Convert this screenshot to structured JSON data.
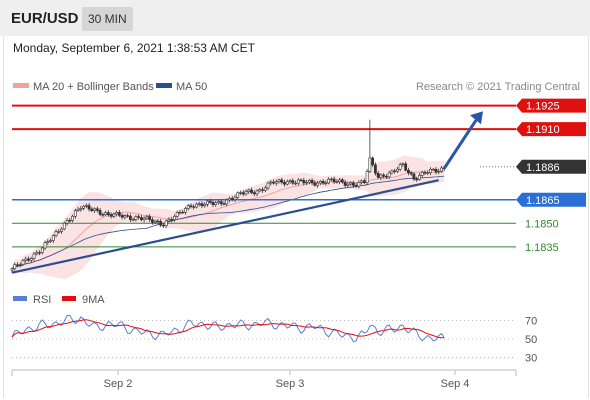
{
  "header": {
    "symbol": "EUR/USD",
    "timeframe": "30 MIN"
  },
  "datetime": "Monday, September 6, 2021 1:38:53 AM CET",
  "legend": {
    "ma20_bb": "MA 20 + Bollinger Bands",
    "ma50": "MA 50",
    "rsi": "RSI",
    "ma9": "9MA"
  },
  "credit": "Research © 2021 Trading Central",
  "colors": {
    "resistance": "#e01010",
    "support_blue": "#2a6fd6",
    "support_green": "#2e8b2e",
    "current": "#333333",
    "bollinger": "#f2a0a0",
    "ma50": "#2b4f8f",
    "rsi": "#5b7fd6",
    "rsi_ma": "#e01010"
  },
  "chart_data": [
    {
      "type": "candlestick",
      "y_range": [
        1.18215,
        1.19305
      ],
      "x_ticks": [
        "Sep 2",
        "Sep 3",
        "Sep 4"
      ],
      "levels": [
        {
          "value": 1.1925,
          "label": "1.1925",
          "kind": "resistance"
        },
        {
          "value": 1.191,
          "label": "1.1910",
          "kind": "resistance"
        },
        {
          "value": 1.1886,
          "label": "1.1886",
          "kind": "current"
        },
        {
          "value": 1.1865,
          "label": "1.1865",
          "kind": "support-blue"
        },
        {
          "value": 1.185,
          "label": "1.1850",
          "kind": "support-green"
        },
        {
          "value": 1.1835,
          "label": "1.1835",
          "kind": "support-green"
        }
      ],
      "trendline": {
        "from": [
          0,
          1.18185
        ],
        "to": [
          155,
          1.18775
        ]
      },
      "projection": {
        "from": [
          157,
          1.1885
        ],
        "to": [
          170,
          1.19195
        ]
      },
      "price_path": [
        [
          0,
          1.1821
        ],
        [
          5,
          1.1826
        ],
        [
          10,
          1.1833
        ],
        [
          15,
          1.1841
        ],
        [
          20,
          1.1852
        ],
        [
          25,
          1.186
        ],
        [
          30,
          1.1859
        ],
        [
          35,
          1.1855
        ],
        [
          40,
          1.1855
        ],
        [
          45,
          1.18535
        ],
        [
          50,
          1.1852
        ],
        [
          55,
          1.185
        ],
        [
          60,
          1.1855
        ],
        [
          65,
          1.1862
        ],
        [
          70,
          1.1862
        ],
        [
          75,
          1.1863
        ],
        [
          80,
          1.1866
        ],
        [
          85,
          1.187
        ],
        [
          90,
          1.1871
        ],
        [
          95,
          1.1876
        ],
        [
          100,
          1.1877
        ],
        [
          105,
          1.1876
        ],
        [
          110,
          1.1876
        ],
        [
          115,
          1.1877
        ],
        [
          120,
          1.1876
        ],
        [
          125,
          1.1875
        ],
        [
          128,
          1.1876
        ],
        [
          130,
          1.189
        ],
        [
          133,
          1.188
        ],
        [
          138,
          1.1882
        ],
        [
          142,
          1.1887
        ],
        [
          146,
          1.1879
        ],
        [
          150,
          1.1882
        ],
        [
          155,
          1.1884
        ],
        [
          157,
          1.18855
        ]
      ],
      "wick_high": {
        "index": 130,
        "value": 1.1916
      }
    },
    {
      "type": "line",
      "title": "RSI",
      "y_range": [
        20,
        80
      ],
      "y_ticks": [
        70,
        50,
        30
      ],
      "rsi_path": [
        [
          0,
          52
        ],
        [
          5,
          60
        ],
        [
          10,
          64
        ],
        [
          15,
          66
        ],
        [
          20,
          70
        ],
        [
          25,
          72
        ],
        [
          30,
          62
        ],
        [
          35,
          66
        ],
        [
          40,
          64
        ],
        [
          45,
          58
        ],
        [
          50,
          56
        ],
        [
          55,
          54
        ],
        [
          60,
          60
        ],
        [
          65,
          66
        ],
        [
          70,
          66
        ],
        [
          75,
          62
        ],
        [
          80,
          66
        ],
        [
          85,
          64
        ],
        [
          90,
          67
        ],
        [
          95,
          66
        ],
        [
          100,
          64
        ],
        [
          105,
          62
        ],
        [
          110,
          63
        ],
        [
          115,
          58
        ],
        [
          120,
          54
        ],
        [
          125,
          52
        ],
        [
          128,
          54
        ],
        [
          130,
          66
        ],
        [
          133,
          58
        ],
        [
          138,
          60
        ],
        [
          142,
          64
        ],
        [
          146,
          56
        ],
        [
          150,
          52
        ],
        [
          155,
          50
        ],
        [
          157,
          51
        ]
      ]
    }
  ]
}
